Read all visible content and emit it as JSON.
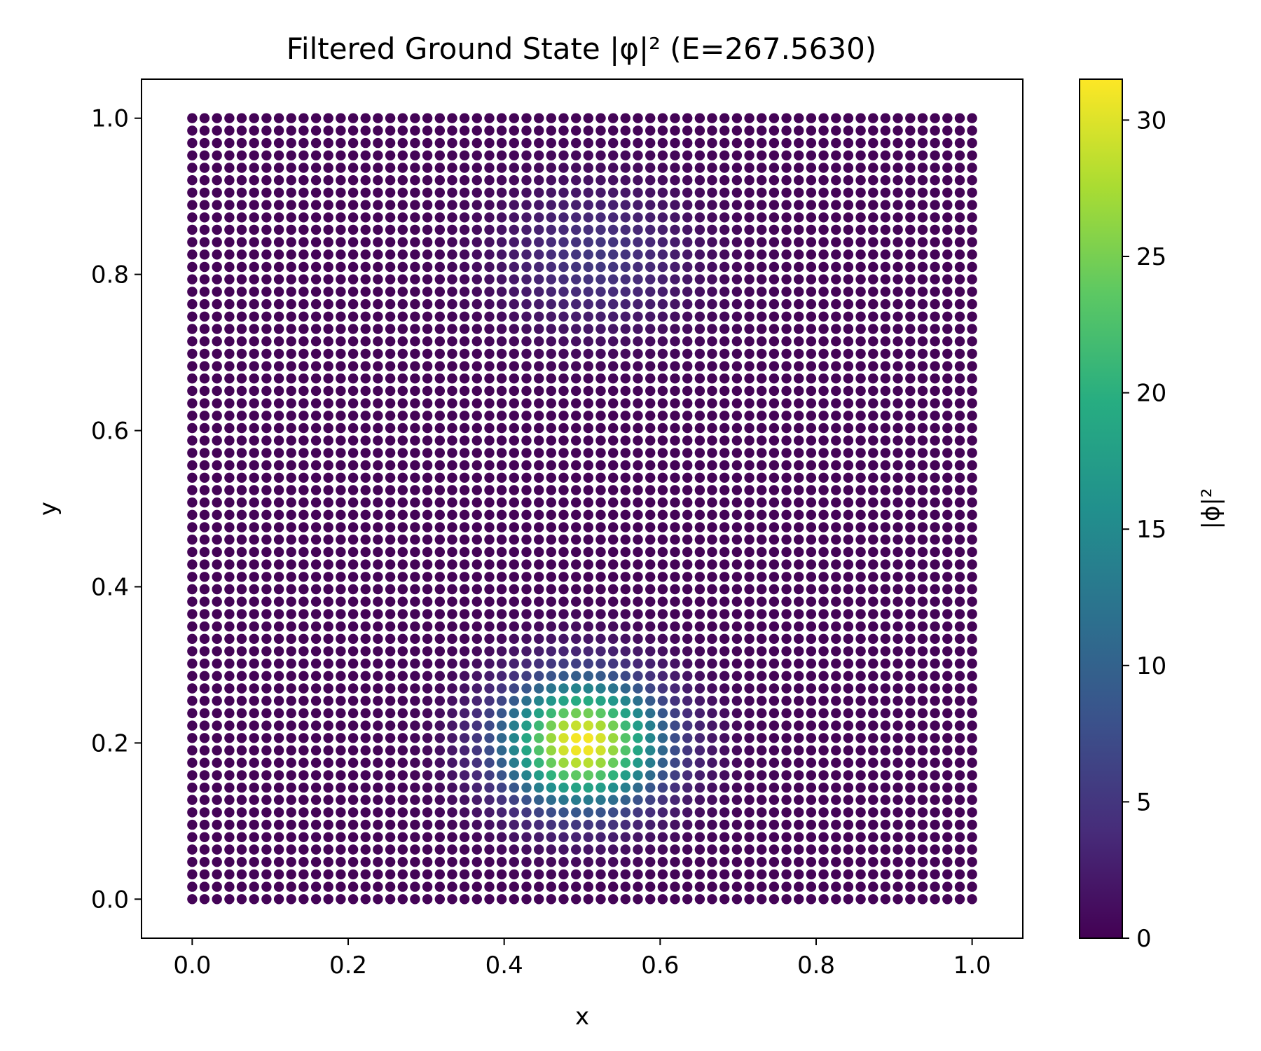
{
  "chart_data": {
    "type": "scatter",
    "title": "Filtered Ground State |φ|² (E=267.5630)",
    "xlabel": "x",
    "ylabel": "y",
    "xlim": [
      -0.065,
      1.065
    ],
    "ylim": [
      -0.05,
      1.05
    ],
    "xticks": [
      "0.0",
      "0.2",
      "0.4",
      "0.6",
      "0.8",
      "1.0"
    ],
    "yticks": [
      "0.0",
      "0.2",
      "0.4",
      "0.6",
      "0.8",
      "1.0"
    ],
    "grid": false,
    "grid_points": {
      "x_range": [
        0.0,
        1.0
      ],
      "y_range": [
        0.0,
        1.0
      ],
      "points_per_side": 64,
      "description": "uniform square grid of points colored by |φ|²"
    },
    "density_peaks": [
      {
        "x": 0.5,
        "y": 0.2,
        "value": 31.5
      },
      {
        "x": 0.52,
        "y": 0.82,
        "value": 5.0
      }
    ],
    "colorbar": {
      "label": "|ϕ|²",
      "range": [
        0,
        31.5
      ],
      "ticks": [
        "0",
        "5",
        "10",
        "15",
        "20",
        "25",
        "30"
      ],
      "tick_values": [
        0,
        5,
        10,
        15,
        20,
        25,
        30
      ],
      "colormap": "viridis"
    }
  }
}
